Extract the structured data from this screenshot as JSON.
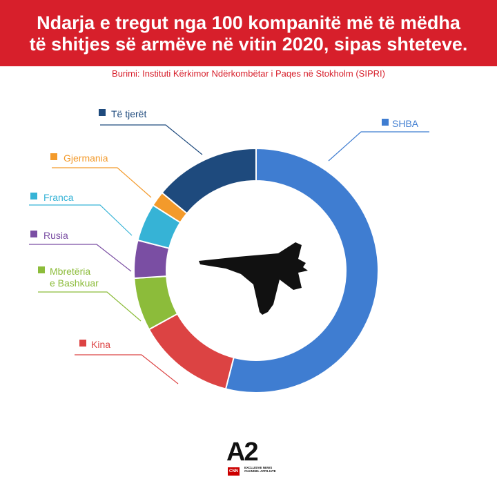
{
  "header": {
    "title_line1": "Ndarja e tregut nga 100 kompanitë më të mëdha",
    "title_line2": "të shitjes së armëve në vitin 2020, sipas shteteve."
  },
  "source": "Burimi: Instituti Kërkimor Ndërkombëtar i Paqes në Stokholm (SIPRI)",
  "chart_data": {
    "type": "pie",
    "donut": true,
    "title": "Ndarja e tregut nga 100 kompanitë më të mëdha të shitjes së armëve në vitin 2020, sipas shteteve.",
    "legend_placement": "around",
    "center_icon": "fighter-jet-icon",
    "slices": [
      {
        "label": "SHBA",
        "value": 54,
        "color": "#3f7dd1"
      },
      {
        "label": "Kina",
        "value": 13,
        "color": "#dc4343"
      },
      {
        "label": "Mbretëria e Bashkuar",
        "value": 7,
        "color": "#8cbc3a"
      },
      {
        "label": "Rusia",
        "value": 5,
        "color": "#7a4ea3"
      },
      {
        "label": "Franca",
        "value": 5,
        "color": "#36b3d6"
      },
      {
        "label": "Gjermania",
        "value": 2,
        "color": "#f39a2b"
      },
      {
        "label": "Të tjerët",
        "value": 14,
        "color": "#1e4a7d"
      }
    ]
  },
  "legend_lines": {
    "uk_line1": "Mbretëria",
    "uk_line2": "e Bashkuar"
  },
  "logo": {
    "brand": "A2",
    "partner": "CNN",
    "tagline": "EXCLUSIVE NEWS CHANNEL AFFILIATE"
  }
}
